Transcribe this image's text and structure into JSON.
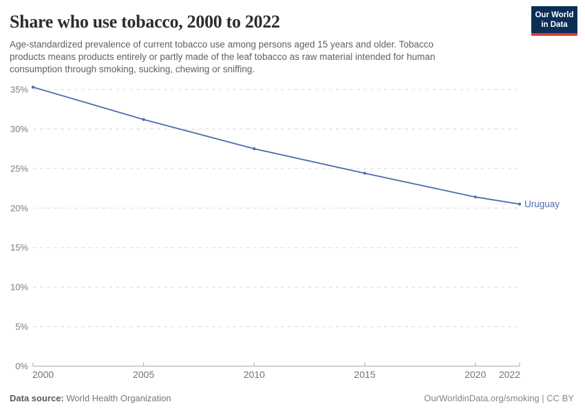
{
  "header": {
    "title": "Share who use tobacco, 2000 to 2022",
    "subtitle": "Age-standardized prevalence of current tobacco use among persons aged 15 years and older. Tobacco\nproducts means products entirely or partly made of the leaf tobacco as raw material intended for human\nconsumption through smoking, sucking, chewing or sniffing.",
    "logo": {
      "line1": "Our World",
      "line2": "in Data",
      "bg_color": "#0b2e55",
      "accent_color": "#dc3a31"
    }
  },
  "chart_data": {
    "type": "line",
    "title": "Share who use tobacco, 2000 to 2022",
    "x": [
      2000,
      2005,
      2010,
      2015,
      2020,
      2022
    ],
    "series": [
      {
        "name": "Uruguay",
        "values": [
          35.3,
          31.2,
          27.5,
          24.4,
          21.4,
          20.5
        ],
        "color": "#4c6bab"
      }
    ],
    "xlabel": "",
    "ylabel": "",
    "xlim": [
      2000,
      2022
    ],
    "ylim": [
      0,
      35
    ],
    "x_ticks": [
      2000,
      2005,
      2010,
      2015,
      2020,
      2022
    ],
    "y_ticks": [
      0,
      5,
      10,
      15,
      20,
      25,
      30,
      35
    ],
    "y_tick_suffix": "%",
    "grid": "horizontal-dashed",
    "legend_position": "end-of-line-label"
  },
  "colors": {
    "grid": "#dadada",
    "axis": "#a5a5a5",
    "x_tick_label": "#737373",
    "y_tick_label": "#7d7d7d"
  },
  "footer": {
    "datasource_label": "Data source:",
    "datasource_value": "World Health Organization",
    "attribution": "OurWorldinData.org/smoking | CC BY"
  }
}
